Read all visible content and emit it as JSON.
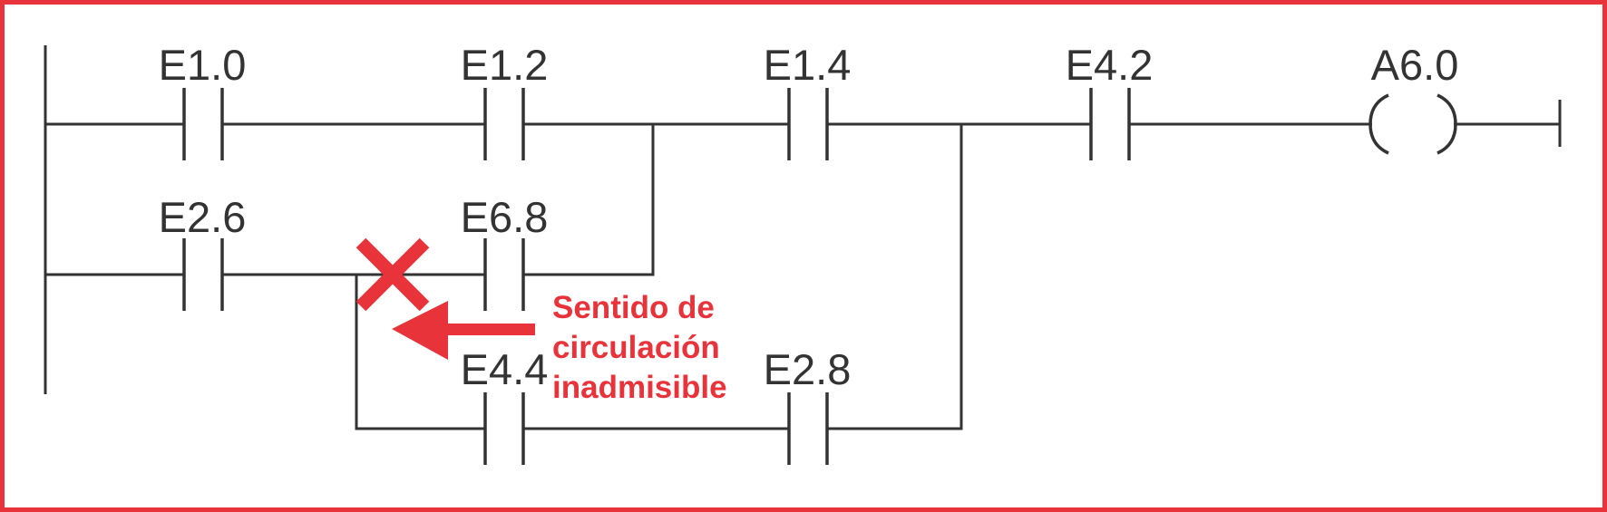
{
  "contacts": {
    "e1_0": "E1.0",
    "e1_2": "E1.2",
    "e1_4": "E1.4",
    "e4_2": "E4.2",
    "e2_6": "E2.6",
    "e6_8": "E6.8",
    "e4_4": "E4.4",
    "e2_8": "E2.8"
  },
  "coil": {
    "a6_0": "A6.0"
  },
  "annotation": {
    "line1": "Sentido de",
    "line2": "circulación",
    "line3": "inadmisible"
  },
  "colors": {
    "accent": "#e8333a",
    "line": "#333333",
    "background": "#ffffff"
  }
}
